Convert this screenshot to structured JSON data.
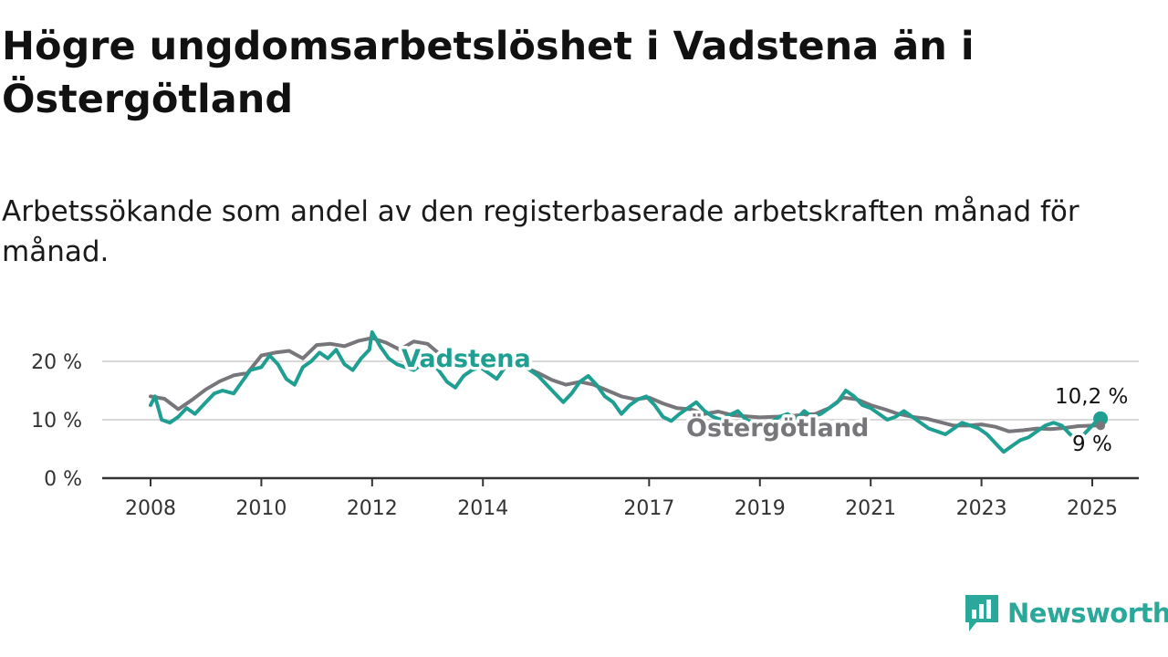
{
  "title": "Högre ungdomsarbetslöshet i Vadstena än i Östergötland",
  "subtitle": "Arbetssökande som andel av den registerbaserade arbetskraften månad för månad.",
  "brand": {
    "name": "Newsworthy",
    "icon": "newsworthy-logo-icon",
    "color": "#2aa89a"
  },
  "chart_data": {
    "type": "line",
    "title": "Högre ungdomsarbetslöshet i Vadstena än i Östergötland",
    "subtitle": "Arbetssökande som andel av den registerbaserade arbetskraften månad för månad.",
    "x_ticks": [
      "2008",
      "2010",
      "2012",
      "2014",
      "2017",
      "2019",
      "2021",
      "2023",
      "2025"
    ],
    "y_ticks": [
      "0 %",
      "10 %",
      "20 %"
    ],
    "ylim": [
      0,
      25
    ],
    "grid": true,
    "series": [
      {
        "name": "Östergötland",
        "color": "#77767a",
        "end_label": "9 %",
        "points": [
          [
            2008.0,
            14.0
          ],
          [
            2008.25,
            13.6
          ],
          [
            2008.5,
            11.8
          ],
          [
            2008.75,
            13.4
          ],
          [
            2009.0,
            15.2
          ],
          [
            2009.25,
            16.6
          ],
          [
            2009.5,
            17.6
          ],
          [
            2009.75,
            18.0
          ],
          [
            2010.0,
            21.0
          ],
          [
            2010.25,
            21.5
          ],
          [
            2010.5,
            21.8
          ],
          [
            2010.75,
            20.5
          ],
          [
            2011.0,
            22.8
          ],
          [
            2011.25,
            23.0
          ],
          [
            2011.5,
            22.6
          ],
          [
            2011.75,
            23.5
          ],
          [
            2012.0,
            24.0
          ],
          [
            2012.25,
            23.2
          ],
          [
            2012.5,
            22.0
          ],
          [
            2012.75,
            23.4
          ],
          [
            2013.0,
            23.0
          ],
          [
            2013.25,
            21.0
          ],
          [
            2013.5,
            19.8
          ],
          [
            2013.75,
            19.5
          ],
          [
            2014.0,
            20.0
          ],
          [
            2014.25,
            19.5
          ],
          [
            2014.5,
            20.2
          ],
          [
            2014.75,
            19.0
          ],
          [
            2015.0,
            18.0
          ],
          [
            2015.25,
            16.8
          ],
          [
            2015.5,
            16.0
          ],
          [
            2015.75,
            16.5
          ],
          [
            2016.0,
            16.0
          ],
          [
            2016.25,
            15.0
          ],
          [
            2016.5,
            14.0
          ],
          [
            2016.75,
            13.5
          ],
          [
            2017.0,
            13.8
          ],
          [
            2017.25,
            12.8
          ],
          [
            2017.5,
            12.0
          ],
          [
            2017.75,
            11.8
          ],
          [
            2018.0,
            11.0
          ],
          [
            2018.25,
            11.4
          ],
          [
            2018.5,
            10.8
          ],
          [
            2018.75,
            10.6
          ],
          [
            2019.0,
            10.4
          ],
          [
            2019.25,
            10.5
          ],
          [
            2019.5,
            10.6
          ],
          [
            2019.75,
            10.8
          ],
          [
            2020.0,
            11.0
          ],
          [
            2020.25,
            12.0
          ],
          [
            2020.5,
            13.8
          ],
          [
            2020.75,
            13.5
          ],
          [
            2021.0,
            12.5
          ],
          [
            2021.25,
            11.8
          ],
          [
            2021.5,
            11.0
          ],
          [
            2021.75,
            10.5
          ],
          [
            2022.0,
            10.2
          ],
          [
            2022.25,
            9.6
          ],
          [
            2022.5,
            9.0
          ],
          [
            2022.75,
            9.0
          ],
          [
            2023.0,
            9.2
          ],
          [
            2023.25,
            8.8
          ],
          [
            2023.5,
            8.0
          ],
          [
            2023.75,
            8.2
          ],
          [
            2024.0,
            8.5
          ],
          [
            2024.25,
            8.4
          ],
          [
            2024.5,
            8.6
          ],
          [
            2024.75,
            8.9
          ],
          [
            2025.0,
            9.0
          ],
          [
            2025.15,
            9.0
          ]
        ]
      },
      {
        "name": "Vadstena",
        "color": "#1f9e92",
        "end_label": "10,2 %",
        "points": [
          [
            2008.0,
            12.5
          ],
          [
            2008.08,
            14.0
          ],
          [
            2008.2,
            10.0
          ],
          [
            2008.35,
            9.5
          ],
          [
            2008.5,
            10.5
          ],
          [
            2008.65,
            12.0
          ],
          [
            2008.8,
            11.0
          ],
          [
            2009.0,
            13.0
          ],
          [
            2009.15,
            14.5
          ],
          [
            2009.3,
            15.0
          ],
          [
            2009.5,
            14.5
          ],
          [
            2009.65,
            16.5
          ],
          [
            2009.8,
            18.5
          ],
          [
            2010.0,
            19.0
          ],
          [
            2010.15,
            21.0
          ],
          [
            2010.3,
            19.5
          ],
          [
            2010.45,
            17.0
          ],
          [
            2010.6,
            16.0
          ],
          [
            2010.75,
            19.0
          ],
          [
            2010.9,
            20.0
          ],
          [
            2011.05,
            21.5
          ],
          [
            2011.2,
            20.5
          ],
          [
            2011.35,
            22.0
          ],
          [
            2011.5,
            19.5
          ],
          [
            2011.65,
            18.5
          ],
          [
            2011.8,
            20.5
          ],
          [
            2011.95,
            22.0
          ],
          [
            2012.0,
            25.0
          ],
          [
            2012.15,
            22.5
          ],
          [
            2012.3,
            20.5
          ],
          [
            2012.45,
            19.5
          ],
          [
            2012.6,
            19.0
          ],
          [
            2012.75,
            18.5
          ],
          [
            2012.9,
            19.5
          ],
          [
            2013.05,
            20.0
          ],
          [
            2013.2,
            18.5
          ],
          [
            2013.35,
            16.5
          ],
          [
            2013.5,
            15.5
          ],
          [
            2013.65,
            17.5
          ],
          [
            2013.8,
            18.5
          ],
          [
            2013.95,
            19.0
          ],
          [
            2014.1,
            18.0
          ],
          [
            2014.25,
            17.0
          ],
          [
            2014.4,
            19.0
          ],
          [
            2014.55,
            20.0
          ],
          [
            2014.7,
            19.5
          ],
          [
            2014.85,
            18.5
          ],
          [
            2015.0,
            17.5
          ],
          [
            2015.15,
            16.0
          ],
          [
            2015.3,
            14.5
          ],
          [
            2015.45,
            13.0
          ],
          [
            2015.6,
            14.5
          ],
          [
            2015.75,
            16.5
          ],
          [
            2015.9,
            17.5
          ],
          [
            2016.05,
            16.0
          ],
          [
            2016.2,
            14.0
          ],
          [
            2016.35,
            13.0
          ],
          [
            2016.5,
            11.0
          ],
          [
            2016.65,
            12.5
          ],
          [
            2016.8,
            13.5
          ],
          [
            2016.95,
            14.0
          ],
          [
            2017.1,
            12.5
          ],
          [
            2017.25,
            10.5
          ],
          [
            2017.4,
            9.8
          ],
          [
            2017.55,
            11.0
          ],
          [
            2017.7,
            12.0
          ],
          [
            2017.85,
            13.0
          ],
          [
            2018.0,
            11.5
          ],
          [
            2018.15,
            10.5
          ],
          [
            2018.3,
            10.0
          ],
          [
            2018.45,
            10.8
          ],
          [
            2018.6,
            11.5
          ],
          [
            2018.75,
            10.0
          ],
          [
            2018.9,
            9.5
          ],
          [
            2019.05,
            9.0
          ],
          [
            2019.2,
            9.5
          ],
          [
            2019.35,
            10.5
          ],
          [
            2019.5,
            11.0
          ],
          [
            2019.65,
            10.0
          ],
          [
            2019.8,
            11.5
          ],
          [
            2019.95,
            10.5
          ],
          [
            2020.1,
            11.0
          ],
          [
            2020.25,
            12.0
          ],
          [
            2020.4,
            13.0
          ],
          [
            2020.55,
            15.0
          ],
          [
            2020.7,
            14.0
          ],
          [
            2020.85,
            12.5
          ],
          [
            2021.0,
            12.0
          ],
          [
            2021.15,
            11.0
          ],
          [
            2021.3,
            10.0
          ],
          [
            2021.45,
            10.5
          ],
          [
            2021.6,
            11.5
          ],
          [
            2021.75,
            10.5
          ],
          [
            2021.9,
            9.5
          ],
          [
            2022.05,
            8.5
          ],
          [
            2022.2,
            8.0
          ],
          [
            2022.35,
            7.5
          ],
          [
            2022.5,
            8.5
          ],
          [
            2022.65,
            9.5
          ],
          [
            2022.8,
            9.0
          ],
          [
            2022.95,
            8.5
          ],
          [
            2023.1,
            7.5
          ],
          [
            2023.25,
            6.0
          ],
          [
            2023.4,
            4.5
          ],
          [
            2023.55,
            5.5
          ],
          [
            2023.7,
            6.5
          ],
          [
            2023.85,
            7.0
          ],
          [
            2024.0,
            8.0
          ],
          [
            2024.15,
            9.0
          ],
          [
            2024.3,
            9.5
          ],
          [
            2024.45,
            9.0
          ],
          [
            2024.6,
            7.5
          ],
          [
            2024.75,
            6.5
          ],
          [
            2024.9,
            8.0
          ],
          [
            2025.05,
            9.5
          ],
          [
            2025.15,
            10.2
          ]
        ]
      }
    ]
  }
}
